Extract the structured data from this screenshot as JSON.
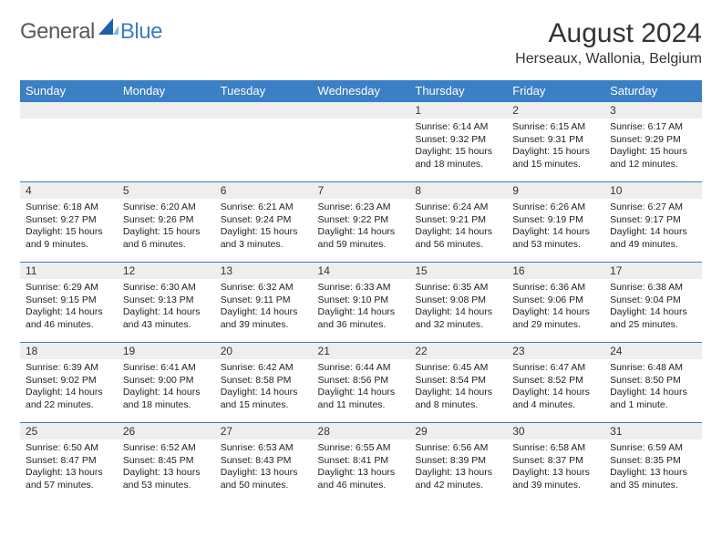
{
  "brand": {
    "part1": "General",
    "part2": "Blue",
    "text_color_general": "#5a5a5a",
    "text_color_blue": "#3b7fc4"
  },
  "title": "August 2024",
  "location": "Herseaux, Wallonia, Belgium",
  "header_bg": "#3b7fc4",
  "header_fg": "#ffffff",
  "row_bg": "#eeeeee",
  "border_color": "#3b7fc4",
  "weekdays": [
    "Sunday",
    "Monday",
    "Tuesday",
    "Wednesday",
    "Thursday",
    "Friday",
    "Saturday"
  ],
  "weeks": [
    [
      null,
      null,
      null,
      null,
      {
        "n": "1",
        "sunrise": "Sunrise: 6:14 AM",
        "sunset": "Sunset: 9:32 PM",
        "daylight": "Daylight: 15 hours and 18 minutes."
      },
      {
        "n": "2",
        "sunrise": "Sunrise: 6:15 AM",
        "sunset": "Sunset: 9:31 PM",
        "daylight": "Daylight: 15 hours and 15 minutes."
      },
      {
        "n": "3",
        "sunrise": "Sunrise: 6:17 AM",
        "sunset": "Sunset: 9:29 PM",
        "daylight": "Daylight: 15 hours and 12 minutes."
      }
    ],
    [
      {
        "n": "4",
        "sunrise": "Sunrise: 6:18 AM",
        "sunset": "Sunset: 9:27 PM",
        "daylight": "Daylight: 15 hours and 9 minutes."
      },
      {
        "n": "5",
        "sunrise": "Sunrise: 6:20 AM",
        "sunset": "Sunset: 9:26 PM",
        "daylight": "Daylight: 15 hours and 6 minutes."
      },
      {
        "n": "6",
        "sunrise": "Sunrise: 6:21 AM",
        "sunset": "Sunset: 9:24 PM",
        "daylight": "Daylight: 15 hours and 3 minutes."
      },
      {
        "n": "7",
        "sunrise": "Sunrise: 6:23 AM",
        "sunset": "Sunset: 9:22 PM",
        "daylight": "Daylight: 14 hours and 59 minutes."
      },
      {
        "n": "8",
        "sunrise": "Sunrise: 6:24 AM",
        "sunset": "Sunset: 9:21 PM",
        "daylight": "Daylight: 14 hours and 56 minutes."
      },
      {
        "n": "9",
        "sunrise": "Sunrise: 6:26 AM",
        "sunset": "Sunset: 9:19 PM",
        "daylight": "Daylight: 14 hours and 53 minutes."
      },
      {
        "n": "10",
        "sunrise": "Sunrise: 6:27 AM",
        "sunset": "Sunset: 9:17 PM",
        "daylight": "Daylight: 14 hours and 49 minutes."
      }
    ],
    [
      {
        "n": "11",
        "sunrise": "Sunrise: 6:29 AM",
        "sunset": "Sunset: 9:15 PM",
        "daylight": "Daylight: 14 hours and 46 minutes."
      },
      {
        "n": "12",
        "sunrise": "Sunrise: 6:30 AM",
        "sunset": "Sunset: 9:13 PM",
        "daylight": "Daylight: 14 hours and 43 minutes."
      },
      {
        "n": "13",
        "sunrise": "Sunrise: 6:32 AM",
        "sunset": "Sunset: 9:11 PM",
        "daylight": "Daylight: 14 hours and 39 minutes."
      },
      {
        "n": "14",
        "sunrise": "Sunrise: 6:33 AM",
        "sunset": "Sunset: 9:10 PM",
        "daylight": "Daylight: 14 hours and 36 minutes."
      },
      {
        "n": "15",
        "sunrise": "Sunrise: 6:35 AM",
        "sunset": "Sunset: 9:08 PM",
        "daylight": "Daylight: 14 hours and 32 minutes."
      },
      {
        "n": "16",
        "sunrise": "Sunrise: 6:36 AM",
        "sunset": "Sunset: 9:06 PM",
        "daylight": "Daylight: 14 hours and 29 minutes."
      },
      {
        "n": "17",
        "sunrise": "Sunrise: 6:38 AM",
        "sunset": "Sunset: 9:04 PM",
        "daylight": "Daylight: 14 hours and 25 minutes."
      }
    ],
    [
      {
        "n": "18",
        "sunrise": "Sunrise: 6:39 AM",
        "sunset": "Sunset: 9:02 PM",
        "daylight": "Daylight: 14 hours and 22 minutes."
      },
      {
        "n": "19",
        "sunrise": "Sunrise: 6:41 AM",
        "sunset": "Sunset: 9:00 PM",
        "daylight": "Daylight: 14 hours and 18 minutes."
      },
      {
        "n": "20",
        "sunrise": "Sunrise: 6:42 AM",
        "sunset": "Sunset: 8:58 PM",
        "daylight": "Daylight: 14 hours and 15 minutes."
      },
      {
        "n": "21",
        "sunrise": "Sunrise: 6:44 AM",
        "sunset": "Sunset: 8:56 PM",
        "daylight": "Daylight: 14 hours and 11 minutes."
      },
      {
        "n": "22",
        "sunrise": "Sunrise: 6:45 AM",
        "sunset": "Sunset: 8:54 PM",
        "daylight": "Daylight: 14 hours and 8 minutes."
      },
      {
        "n": "23",
        "sunrise": "Sunrise: 6:47 AM",
        "sunset": "Sunset: 8:52 PM",
        "daylight": "Daylight: 14 hours and 4 minutes."
      },
      {
        "n": "24",
        "sunrise": "Sunrise: 6:48 AM",
        "sunset": "Sunset: 8:50 PM",
        "daylight": "Daylight: 14 hours and 1 minute."
      }
    ],
    [
      {
        "n": "25",
        "sunrise": "Sunrise: 6:50 AM",
        "sunset": "Sunset: 8:47 PM",
        "daylight": "Daylight: 13 hours and 57 minutes."
      },
      {
        "n": "26",
        "sunrise": "Sunrise: 6:52 AM",
        "sunset": "Sunset: 8:45 PM",
        "daylight": "Daylight: 13 hours and 53 minutes."
      },
      {
        "n": "27",
        "sunrise": "Sunrise: 6:53 AM",
        "sunset": "Sunset: 8:43 PM",
        "daylight": "Daylight: 13 hours and 50 minutes."
      },
      {
        "n": "28",
        "sunrise": "Sunrise: 6:55 AM",
        "sunset": "Sunset: 8:41 PM",
        "daylight": "Daylight: 13 hours and 46 minutes."
      },
      {
        "n": "29",
        "sunrise": "Sunrise: 6:56 AM",
        "sunset": "Sunset: 8:39 PM",
        "daylight": "Daylight: 13 hours and 42 minutes."
      },
      {
        "n": "30",
        "sunrise": "Sunrise: 6:58 AM",
        "sunset": "Sunset: 8:37 PM",
        "daylight": "Daylight: 13 hours and 39 minutes."
      },
      {
        "n": "31",
        "sunrise": "Sunrise: 6:59 AM",
        "sunset": "Sunset: 8:35 PM",
        "daylight": "Daylight: 13 hours and 35 minutes."
      }
    ]
  ]
}
